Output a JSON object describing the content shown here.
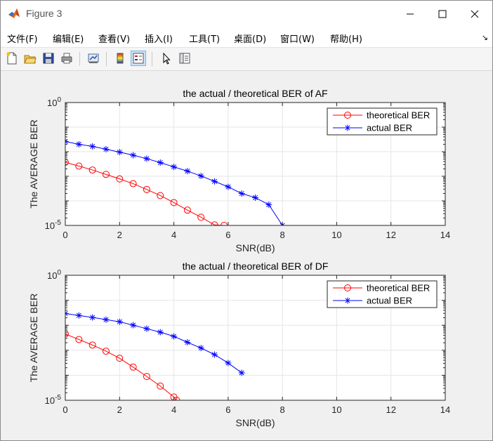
{
  "window": {
    "title": "Figure 3",
    "controls": {
      "minimize": "minimize-icon",
      "maximize": "maximize-icon",
      "close": "close-icon"
    }
  },
  "menu": [
    "文件(F)",
    "编辑(E)",
    "查看(V)",
    "插入(I)",
    "工具(T)",
    "桌面(D)",
    "窗口(W)",
    "帮助(H)"
  ],
  "toolbar": [
    "new-figure-icon",
    "open-file-icon",
    "save-icon",
    "print-icon",
    "link-plot-icon",
    "insert-colorbar-icon",
    "insert-legend-icon",
    "edit-plot-arrow-icon",
    "property-inspector-icon"
  ],
  "chart_data": [
    {
      "type": "line",
      "title": "the actual / theoretical BER of AF",
      "xlabel": "SNR(dB)",
      "ylabel": "The AVERAGE BER",
      "xlim": [
        0,
        14
      ],
      "ylim_exp": [
        -5,
        0
      ],
      "yscale": "log",
      "xticks": [
        "0",
        "2",
        "4",
        "6",
        "8",
        "10",
        "12",
        "14"
      ],
      "ytick_base": "10",
      "ytick_exponents": [
        "0",
        "-5"
      ],
      "grid": true,
      "legend": "top-right",
      "series": [
        {
          "name": "theoretical BER",
          "color": "#ff0000",
          "marker": "circle",
          "x": [
            0,
            0.5,
            1,
            1.5,
            2,
            2.5,
            3,
            3.5,
            4,
            4.5,
            5,
            5.5,
            5.85
          ],
          "y": [
            0.0037,
            0.0026,
            0.0018,
            0.00119,
            0.00078,
            0.0005,
            0.00029,
            0.000164,
            8.5e-05,
            4.2e-05,
            2.15e-05,
            1.05e-05,
            1e-05
          ]
        },
        {
          "name": "actual BER",
          "color": "#0000ff",
          "marker": "star",
          "x": [
            0,
            0.5,
            1,
            1.5,
            2,
            2.5,
            3,
            3.5,
            4,
            4.5,
            5,
            5.5,
            6,
            6.5,
            7,
            7.5,
            8
          ],
          "y": [
            0.026,
            0.02,
            0.0165,
            0.0126,
            0.0096,
            0.0072,
            0.0052,
            0.0036,
            0.0024,
            0.00162,
            0.00103,
            0.00062,
            0.00037,
            0.000198,
            0.000135,
            6.95e-05,
            1e-05
          ]
        }
      ]
    },
    {
      "type": "line",
      "title": "the actual / theoretical BER of DF",
      "xlabel": "SNR(dB)",
      "ylabel": "The AVERAGE BER",
      "xlim": [
        0,
        14
      ],
      "ylim_exp": [
        -5,
        0
      ],
      "yscale": "log",
      "xticks": [
        "0",
        "2",
        "4",
        "6",
        "8",
        "10",
        "12",
        "14"
      ],
      "ytick_base": "10",
      "ytick_exponents": [
        "0",
        "-5"
      ],
      "grid": true,
      "legend": "top-right",
      "series": [
        {
          "name": "theoretical BER",
          "color": "#ff0000",
          "marker": "circle",
          "x": [
            0,
            0.5,
            1,
            1.5,
            2,
            2.5,
            3,
            3.5,
            4,
            4.1
          ],
          "y": [
            0.0045,
            0.0027,
            0.00162,
            0.00092,
            0.00048,
            0.000212,
            8.95e-05,
            3.7e-05,
            1.35e-05,
            1e-05
          ]
        },
        {
          "name": "actual BER",
          "color": "#0000ff",
          "marker": "star",
          "x": [
            0,
            0.5,
            1,
            1.5,
            2,
            2.5,
            3,
            3.5,
            4,
            4.5,
            5,
            5.5,
            6,
            6.5
          ],
          "y": [
            0.0295,
            0.0247,
            0.0206,
            0.0168,
            0.0138,
            0.0101,
            0.0073,
            0.0053,
            0.0036,
            0.00208,
            0.00123,
            0.00067,
            0.00031,
            0.000125
          ]
        }
      ]
    }
  ]
}
